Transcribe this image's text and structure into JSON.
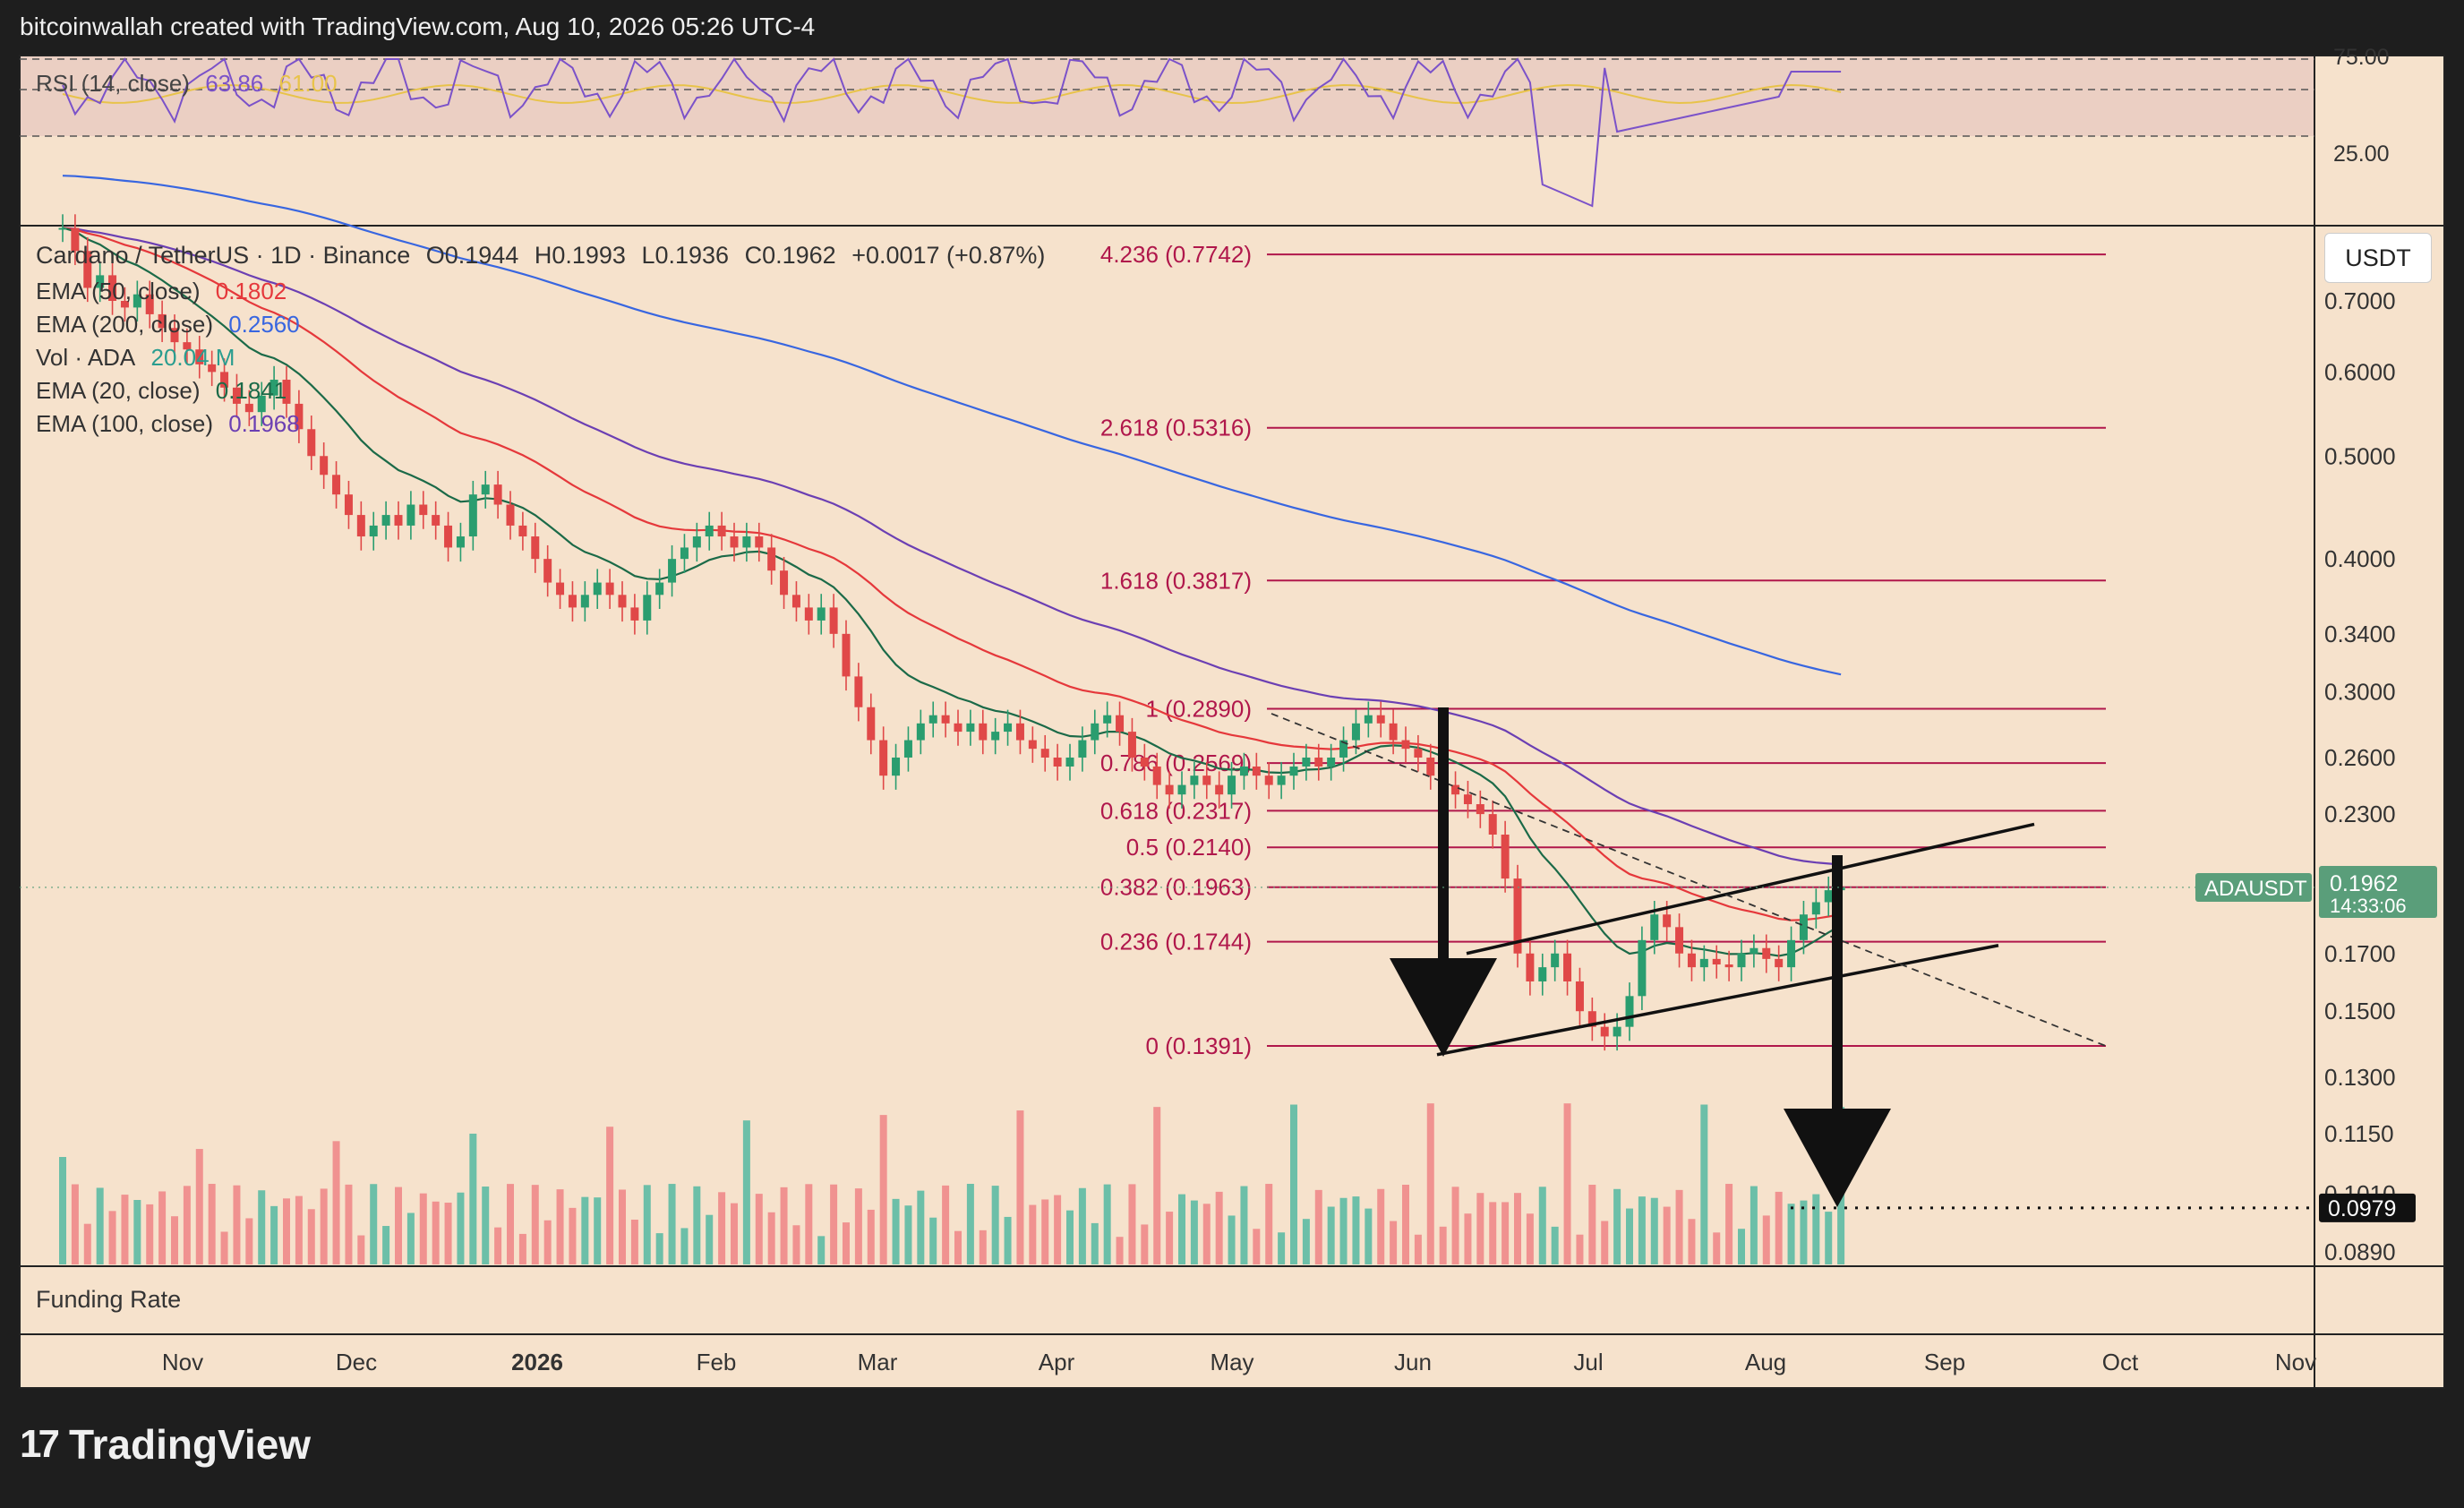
{
  "header": {
    "title": "bitcoinwallah created with TradingView.com, Aug 10, 2026 05:26 UTC-4"
  },
  "footer": {
    "brand": "TradingView",
    "logo_mark": "17"
  },
  "rsi": {
    "label": "RSI (14, close)",
    "value": "63.86",
    "ma_value": "61.00",
    "levels": [
      "75.00",
      "25.00"
    ]
  },
  "symbol": {
    "name": "Cardano / TetherUS · 1D · Binance",
    "open": "O0.1944",
    "high": "H0.1993",
    "low": "L0.1936",
    "close": "C0.1962",
    "change": "+0.0017 (+0.87%)"
  },
  "indicators": [
    {
      "label": "EMA (50, close)",
      "value": "0.1802",
      "color": "#e5383b"
    },
    {
      "label": "EMA (200, close)",
      "value": "0.2560",
      "color": "#3866e0"
    },
    {
      "label": "Vol · ADA",
      "value": "20.04 M",
      "color": "#2a9d8f"
    },
    {
      "label": "EMA (20, close)",
      "value": "0.1841",
      "color": "#1b6a48"
    },
    {
      "label": "EMA (100, close)",
      "value": "0.1968",
      "color": "#6b3fb3"
    }
  ],
  "currency_button": "USDT",
  "funding_label": "Funding Rate",
  "price_tag": {
    "symbol": "ADAUSDT",
    "price": "0.1962",
    "countdown": "14:33:06"
  },
  "target_tag": "0.0979",
  "colors": {
    "bg": "#f6e2cc",
    "fib": "#b0174b",
    "up": "#2a9d6f",
    "down": "#e04848",
    "vol_up": "#6cbfa8",
    "vol_down": "#f09290",
    "ema20": "#1b6a48",
    "ema50": "#e5383b",
    "ema100": "#6b3fb3",
    "ema200": "#3866e0",
    "rsi": "#7b52c9",
    "rsi_ma": "#e8c34a"
  },
  "chart_data": {
    "type": "candlestick",
    "title": "Cardano / TetherUS · 1D · Binance",
    "y_scale": "log",
    "y_ticks": [
      "0.7000",
      "0.6000",
      "0.5000",
      "0.4000",
      "0.3400",
      "0.3000",
      "0.2600",
      "0.2300",
      "0.2000",
      "0.1700",
      "0.1500",
      "0.1300",
      "0.1150",
      "0.1010",
      "0.0890"
    ],
    "y_tick_values": [
      0.7,
      0.6,
      0.5,
      0.4,
      0.34,
      0.3,
      0.26,
      0.23,
      0.2,
      0.17,
      0.15,
      0.13,
      0.115,
      0.101,
      0.089
    ],
    "x_ticks": [
      "Nov",
      "Dec",
      "2026",
      "Feb",
      "Mar",
      "Apr",
      "May",
      "Jun",
      "Jul",
      "Aug",
      "Sep",
      "Oct",
      "Nov"
    ],
    "fib_levels": [
      {
        "ratio": "4.236",
        "price": 0.7742,
        "label": "4.236 (0.7742)"
      },
      {
        "ratio": "2.618",
        "price": 0.5316,
        "label": "2.618 (0.5316)"
      },
      {
        "ratio": "1.618",
        "price": 0.3817,
        "label": "1.618 (0.3817)"
      },
      {
        "ratio": "1",
        "price": 0.289,
        "label": "1 (0.2890)"
      },
      {
        "ratio": "0.786",
        "price": 0.2569,
        "label": "0.786 (0.2569)"
      },
      {
        "ratio": "0.618",
        "price": 0.2317,
        "label": "0.618 (0.2317)"
      },
      {
        "ratio": "0.5",
        "price": 0.214,
        "label": "0.5 (0.2140)"
      },
      {
        "ratio": "0.382",
        "price": 0.1963,
        "label": "0.382 (0.1963)"
      },
      {
        "ratio": "0.236",
        "price": 0.1744,
        "label": "0.236 (0.1744)"
      },
      {
        "ratio": "0",
        "price": 0.1391,
        "label": "0 (0.1391)"
      }
    ],
    "last_price": 0.1962,
    "target_price": 0.0979,
    "candles_close": [
      0.82,
      0.78,
      0.72,
      0.74,
      0.7,
      0.69,
      0.71,
      0.68,
      0.66,
      0.64,
      0.63,
      0.61,
      0.6,
      0.58,
      0.56,
      0.55,
      0.57,
      0.59,
      0.56,
      0.53,
      0.5,
      0.48,
      0.46,
      0.44,
      0.42,
      0.43,
      0.44,
      0.43,
      0.45,
      0.44,
      0.43,
      0.41,
      0.42,
      0.46,
      0.47,
      0.45,
      0.43,
      0.42,
      0.4,
      0.38,
      0.37,
      0.36,
      0.37,
      0.38,
      0.37,
      0.36,
      0.35,
      0.37,
      0.38,
      0.4,
      0.41,
      0.42,
      0.43,
      0.42,
      0.41,
      0.42,
      0.41,
      0.39,
      0.37,
      0.36,
      0.35,
      0.36,
      0.34,
      0.31,
      0.29,
      0.27,
      0.25,
      0.26,
      0.27,
      0.28,
      0.285,
      0.28,
      0.275,
      0.28,
      0.27,
      0.275,
      0.28,
      0.27,
      0.265,
      0.26,
      0.255,
      0.26,
      0.27,
      0.28,
      0.285,
      0.275,
      0.26,
      0.255,
      0.245,
      0.24,
      0.245,
      0.25,
      0.245,
      0.24,
      0.25,
      0.255,
      0.25,
      0.245,
      0.25,
      0.255,
      0.26,
      0.255,
      0.26,
      0.27,
      0.28,
      0.285,
      0.28,
      0.27,
      0.265,
      0.26,
      0.25,
      0.245,
      0.24,
      0.235,
      0.23,
      0.22,
      0.2,
      0.17,
      0.16,
      0.165,
      0.17,
      0.16,
      0.15,
      0.145,
      0.142,
      0.145,
      0.155,
      0.175,
      0.185,
      0.18,
      0.17,
      0.165,
      0.168,
      0.166,
      0.165,
      0.17,
      0.172,
      0.168,
      0.165,
      0.175,
      0.185,
      0.19,
      0.195,
      0.1962
    ]
  }
}
